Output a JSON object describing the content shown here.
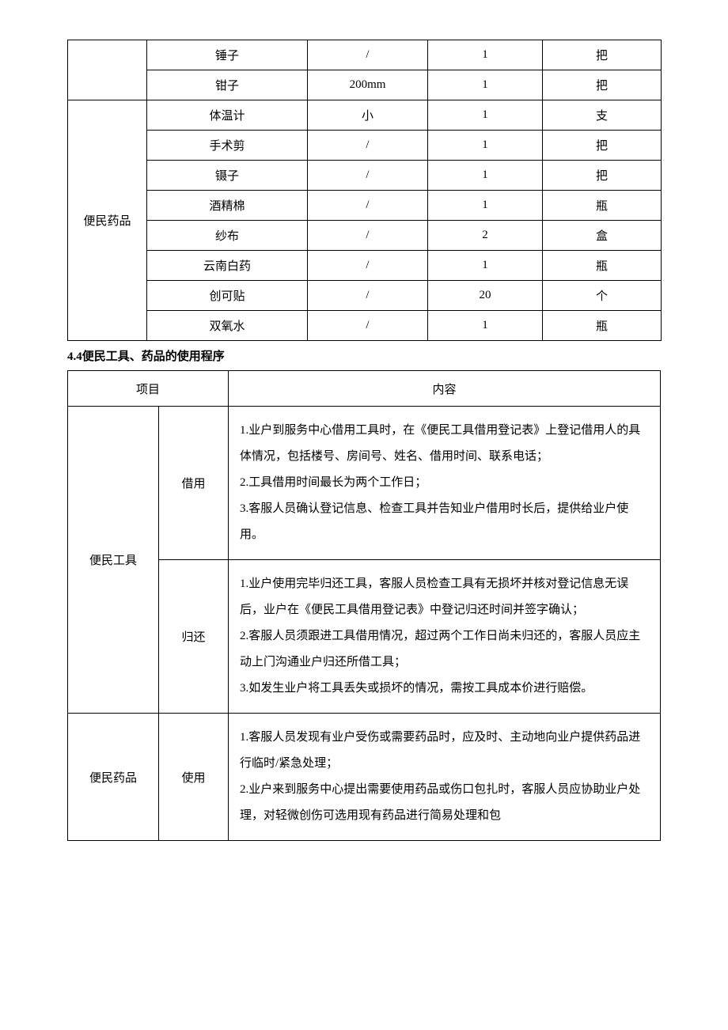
{
  "table1": {
    "col_widths": {
      "category": 100,
      "item": 203,
      "spec": 152,
      "qty": 145,
      "unit": 150
    },
    "category1_blank": "",
    "rows_group1": [
      {
        "item": "锤子",
        "spec": "/",
        "qty": "1",
        "unit": "把"
      },
      {
        "item": "钳子",
        "spec": "200mm",
        "qty": "1",
        "unit": "把"
      }
    ],
    "category2": "便民药品",
    "rows_group2": [
      {
        "item": "体温计",
        "spec": "小",
        "qty": "1",
        "unit": "支"
      },
      {
        "item": "手术剪",
        "spec": "/",
        "qty": "1",
        "unit": "把"
      },
      {
        "item": "镊子",
        "spec": "/",
        "qty": "1",
        "unit": "把"
      },
      {
        "item": "酒精棉",
        "spec": "/",
        "qty": "1",
        "unit": "瓶"
      },
      {
        "item": "纱布",
        "spec": "/",
        "qty": "2",
        "unit": "盒"
      },
      {
        "item": "云南白药",
        "spec": "/",
        "qty": "1",
        "unit": "瓶"
      },
      {
        "item": "创可贴",
        "spec": "/",
        "qty": "20",
        "unit": "个"
      },
      {
        "item": "双氧水",
        "spec": "/",
        "qty": "1",
        "unit": "瓶"
      }
    ]
  },
  "section_title": "4.4便民工具、药品的使用程序",
  "table2": {
    "header": {
      "col1": "项目",
      "col2": "内容"
    },
    "row1_category": "便民工具",
    "row1_action": "借用",
    "row1_content": "1.业户到服务中心借用工具时，在《便民工具借用登记表》上登记借用人的具体情况，包括楼号、房间号、姓名、借用时间、联系电话；\n2.工具借用时间最长为两个工作日；\n3.客服人员确认登记信息、检查工具并告知业户借用时长后，提供给业户使用。",
    "row2_action": "归还",
    "row2_content": "1.业户使用完毕归还工具，客服人员检查工具有无损坏并核对登记信息无误后，业户在《便民工具借用登记表》中登记归还时间并签字确认；\n2.客服人员须跟进工具借用情况，超过两个工作日尚未归还的，客服人员应主动上门沟通业户归还所借工具；\n3.如发生业户将工具丢失或损坏的情况，需按工具成本价进行赔偿。",
    "row3_category": "便民药品",
    "row3_action": "使用",
    "row3_content": "1.客服人员发现有业户受伤或需要药品时，应及时、主动地向业户提供药品进行临时/紧急处理；\n2.业户来到服务中心提出需要使用药品或伤口包扎时，客服人员应协助业户处理，对轻微创伤可选用现有药品进行简易处理和包"
  },
  "colors": {
    "text": "#000000",
    "border": "#000000",
    "background": "#ffffff"
  }
}
